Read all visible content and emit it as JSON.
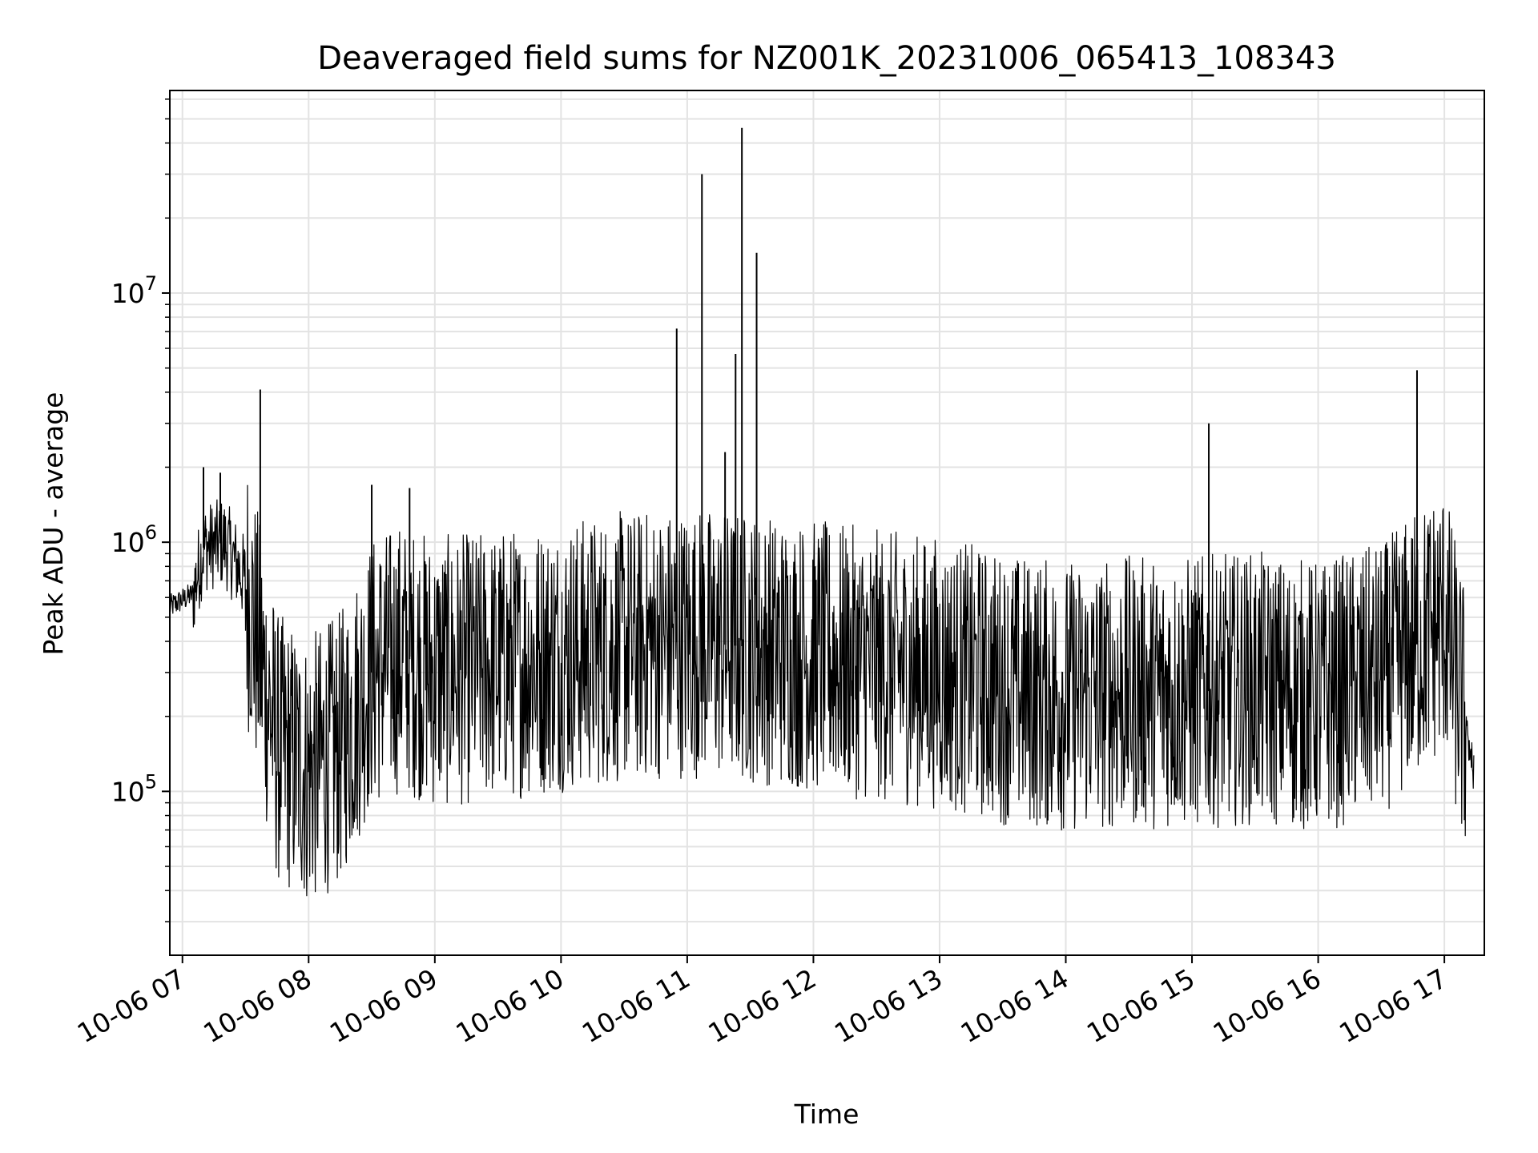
{
  "chart_data": {
    "type": "line",
    "title": "Deaveraged field sums for NZ001K_20231006_065413_108343",
    "xlabel": "Time",
    "ylabel": "Peak ADU - average",
    "yscale": "log",
    "ylim": [
      22000,
      65000000
    ],
    "xlim": [
      "2023-10-06 06:54",
      "2023-10-06 17:19"
    ],
    "grid": true,
    "x_ticks": [
      "10-06 07",
      "10-06 08",
      "10-06 09",
      "10-06 10",
      "10-06 11",
      "10-06 12",
      "10-06 13",
      "10-06 14",
      "10-06 15",
      "10-06 16",
      "10-06 17"
    ],
    "y_ticks": [
      {
        "base": "10",
        "exp": "5",
        "value": 100000
      },
      {
        "base": "10",
        "exp": "6",
        "value": 1000000
      },
      {
        "base": "10",
        "exp": "7",
        "value": 10000000
      }
    ],
    "line_color": "#000000",
    "series": [
      {
        "points": [
          [
            "2023-10-06 06:54",
            550000
          ],
          [
            "2023-10-06 07:05",
            620000
          ],
          [
            "2023-10-06 07:10",
            950000
          ],
          [
            "2023-10-06 07:20",
            1000000
          ],
          [
            "2023-10-06 07:30",
            700000
          ],
          [
            "2023-10-06 07:45",
            150000
          ],
          [
            "2023-10-06 08:00",
            120000
          ],
          [
            "2023-10-06 08:15",
            150000
          ],
          [
            "2023-10-06 08:30",
            300000
          ],
          [
            "2023-10-06 08:45",
            350000
          ],
          [
            "2023-10-06 09:00",
            300000
          ],
          [
            "2023-10-06 09:30",
            320000
          ],
          [
            "2023-10-06 10:00",
            350000
          ],
          [
            "2023-10-06 10:30",
            380000
          ],
          [
            "2023-10-06 11:00",
            400000
          ],
          [
            "2023-10-06 11:30",
            380000
          ],
          [
            "2023-10-06 12:00",
            350000
          ],
          [
            "2023-10-06 12:30",
            320000
          ],
          [
            "2023-10-06 13:00",
            300000
          ],
          [
            "2023-10-06 13:30",
            260000
          ],
          [
            "2023-10-06 14:00",
            240000
          ],
          [
            "2023-10-06 14:30",
            250000
          ],
          [
            "2023-10-06 15:00",
            250000
          ],
          [
            "2023-10-06 15:30",
            260000
          ],
          [
            "2023-10-06 16:00",
            240000
          ],
          [
            "2023-10-06 16:30",
            280000
          ],
          [
            "2023-10-06 17:00",
            500000
          ],
          [
            "2023-10-06 17:14",
            120000
          ]
        ],
        "spikes": [
          [
            "2023-10-06 07:10",
            2000000
          ],
          [
            "2023-10-06 07:18",
            1900000
          ],
          [
            "2023-10-06 07:37",
            4100000
          ],
          [
            "2023-10-06 08:30",
            1700000
          ],
          [
            "2023-10-06 08:48",
            1650000
          ],
          [
            "2023-10-06 10:55",
            7200000
          ],
          [
            "2023-10-06 11:07",
            30000000
          ],
          [
            "2023-10-06 11:18",
            2300000
          ],
          [
            "2023-10-06 11:23",
            5700000
          ],
          [
            "2023-10-06 11:26",
            46000000
          ],
          [
            "2023-10-06 11:33",
            14500000
          ],
          [
            "2023-10-06 15:08",
            3000000
          ],
          [
            "2023-10-06 16:47",
            4900000
          ]
        ]
      }
    ]
  }
}
